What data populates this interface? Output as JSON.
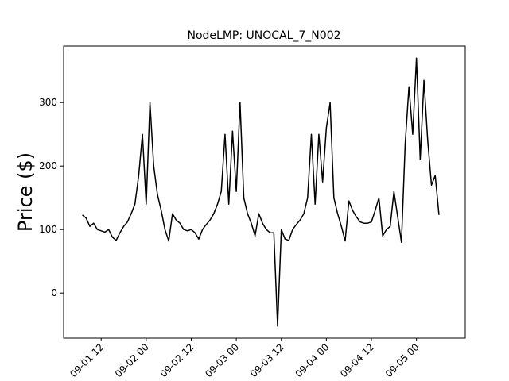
{
  "chart_data": {
    "type": "line",
    "title": "NodeLMP: UNOCAL_7_N002",
    "y_label": "Price ($)",
    "x": [
      "09-01 07",
      "09-01 08",
      "09-01 09",
      "09-01 10",
      "09-01 11",
      "09-01 12",
      "09-01 13",
      "09-01 14",
      "09-01 15",
      "09-01 16",
      "09-01 17",
      "09-01 18",
      "09-01 19",
      "09-01 20",
      "09-01 21",
      "09-01 22",
      "09-01 23",
      "09-02 00",
      "09-02 01",
      "09-02 02",
      "09-02 03",
      "09-02 04",
      "09-02 05",
      "09-02 06",
      "09-02 07",
      "09-02 08",
      "09-02 09",
      "09-02 10",
      "09-02 11",
      "09-02 12",
      "09-02 13",
      "09-02 14",
      "09-02 15",
      "09-02 16",
      "09-02 17",
      "09-02 18",
      "09-02 19",
      "09-02 20",
      "09-02 21",
      "09-02 22",
      "09-02 23",
      "09-03 00",
      "09-03 01",
      "09-03 02",
      "09-03 03",
      "09-03 04",
      "09-03 05",
      "09-03 06",
      "09-03 07",
      "09-03 08",
      "09-03 09",
      "09-03 10",
      "09-03 11",
      "09-03 12",
      "09-03 13",
      "09-03 14",
      "09-03 15",
      "09-03 16",
      "09-03 17",
      "09-03 18",
      "09-03 19",
      "09-03 20",
      "09-03 21",
      "09-03 22",
      "09-03 23",
      "09-04 00",
      "09-04 01",
      "09-04 02",
      "09-04 03",
      "09-04 04",
      "09-04 05",
      "09-04 06",
      "09-04 07",
      "09-04 08",
      "09-04 09",
      "09-04 10",
      "09-04 11",
      "09-04 12",
      "09-04 13",
      "09-04 14",
      "09-04 15",
      "09-04 16",
      "09-04 17",
      "09-04 18",
      "09-04 19",
      "09-04 20",
      "09-04 21",
      "09-04 22",
      "09-04 23",
      "09-05 00",
      "09-05 01",
      "09-05 02",
      "09-05 03",
      "09-05 04",
      "09-05 05",
      "09-05 06"
    ],
    "series": [
      {
        "color": "#000000",
        "values": [
          123,
          118,
          105,
          110,
          100,
          98,
          96,
          100,
          88,
          83,
          95,
          105,
          112,
          125,
          140,
          185,
          250,
          140,
          300,
          200,
          155,
          130,
          100,
          82,
          125,
          115,
          110,
          100,
          98,
          100,
          95,
          85,
          100,
          108,
          115,
          125,
          140,
          160,
          250,
          140,
          255,
          160,
          300,
          150,
          125,
          110,
          90,
          125,
          110,
          100,
          95,
          95,
          -52,
          100,
          85,
          83,
          100,
          108,
          115,
          125,
          150,
          250,
          140,
          250,
          175,
          260,
          300,
          150,
          125,
          105,
          82,
          145,
          130,
          120,
          112,
          110,
          110,
          112,
          130,
          150,
          90,
          100,
          105,
          160,
          120,
          80,
          235,
          325,
          250,
          370,
          210,
          335,
          240,
          170,
          185,
          123
        ]
      }
    ],
    "xlim": [
      "09-01 02",
      "09-05 13"
    ],
    "xticks": [
      "09-01 12",
      "09-02 00",
      "09-02 12",
      "09-03 00",
      "09-03 12",
      "09-04 00",
      "09-04 12",
      "09-05 00"
    ],
    "ylim": [
      -71,
      389
    ],
    "yticks": [
      0,
      100,
      200,
      300
    ]
  }
}
